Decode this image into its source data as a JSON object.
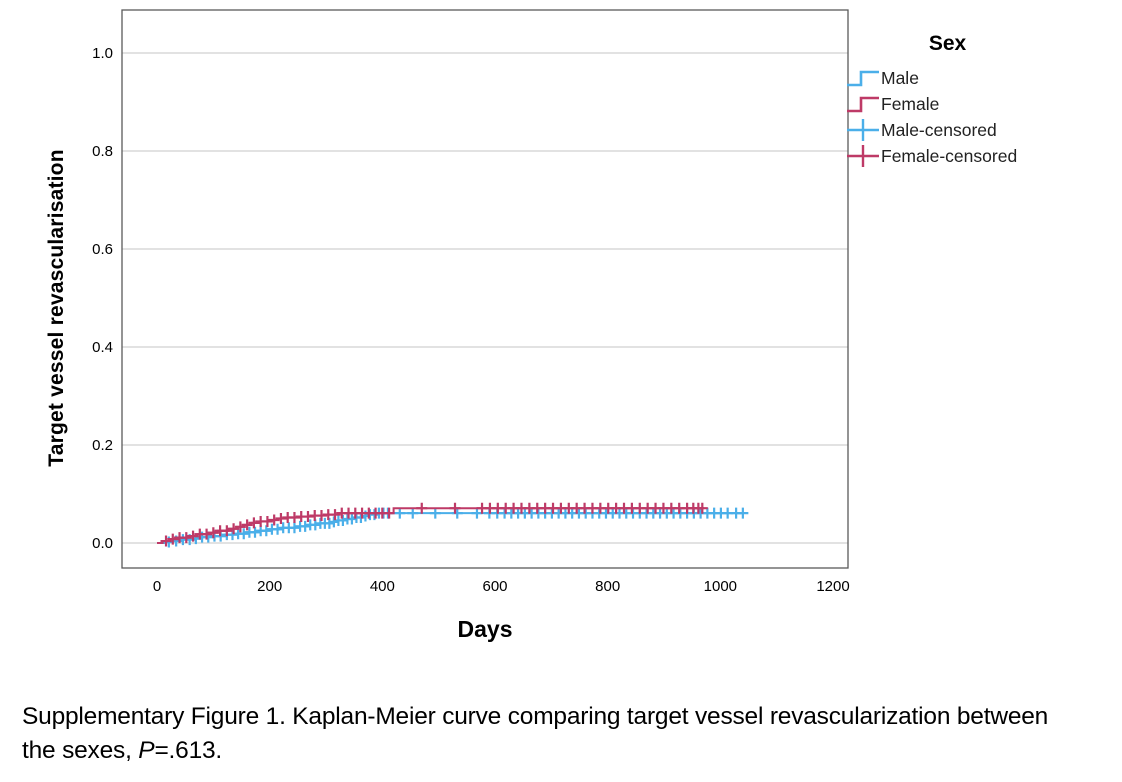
{
  "figure": {
    "y_axis_title": "Target vessel revascularisation",
    "x_axis_title": "Days",
    "legend": {
      "title": "Sex",
      "items": [
        {
          "label": "Male",
          "symbol": "step-line",
          "color_key": "male"
        },
        {
          "label": "Female",
          "symbol": "step-line",
          "color_key": "female"
        },
        {
          "label": "Male-censored",
          "symbol": "plus",
          "color_key": "male"
        },
        {
          "label": "Female-censored",
          "symbol": "plus",
          "color_key": "female"
        }
      ]
    }
  },
  "caption": {
    "text_before_p": "Supplementary Figure 1. Kaplan-Meier curve comparing target vessel revascularization between the sexes, ",
    "p_symbol": "P",
    "text_after_p": "=.613."
  },
  "colors": {
    "male": "#4BAFE9",
    "female": "#BE3A67",
    "gridline": "#D8D8D8",
    "frame": "#5A5A5A",
    "tick_text": "#000000"
  },
  "chart_data": {
    "type": "line",
    "subtype": "kaplan-meier-step",
    "title": "",
    "xlabel": "Days",
    "ylabel": "Target vessel revascularisation",
    "xlim": [
      -62,
      1227
    ],
    "ylim": [
      -0.05,
      1.09
    ],
    "x_ticks": [
      0,
      200,
      400,
      600,
      800,
      1000,
      1200
    ],
    "y_ticks": [
      0.0,
      0.2,
      0.4,
      0.6,
      0.8,
      1.0
    ],
    "y_tick_labels": [
      "0.0",
      "0.2",
      "0.4",
      "0.6",
      "0.8",
      "1.0"
    ],
    "grid": "horizontal",
    "legend_position": "outside-top-right",
    "p_value": 0.613,
    "series": [
      {
        "name": "Male",
        "color_key": "male",
        "end_day": 1040,
        "steps": [
          [
            0,
            0
          ],
          [
            14,
            0.002
          ],
          [
            28,
            0.004
          ],
          [
            45,
            0.007
          ],
          [
            62,
            0.009
          ],
          [
            80,
            0.012
          ],
          [
            100,
            0.014
          ],
          [
            120,
            0.017
          ],
          [
            140,
            0.019
          ],
          [
            160,
            0.022
          ],
          [
            180,
            0.025
          ],
          [
            200,
            0.028
          ],
          [
            222,
            0.031
          ],
          [
            245,
            0.034
          ],
          [
            268,
            0.037
          ],
          [
            290,
            0.04
          ],
          [
            308,
            0.043
          ],
          [
            322,
            0.046
          ],
          [
            336,
            0.049
          ],
          [
            350,
            0.052
          ],
          [
            363,
            0.055
          ],
          [
            377,
            0.058
          ],
          [
            392,
            0.061
          ]
        ],
        "censored_days": [
          21,
          34,
          46,
          58,
          69,
          80,
          91,
          102,
          113,
          124,
          134,
          144,
          154,
          164,
          174,
          184,
          194,
          204,
          214,
          224,
          234,
          244,
          254,
          263,
          272,
          281,
          290,
          298,
          306,
          314,
          322,
          330,
          338,
          346,
          354,
          362,
          370,
          378,
          386,
          394,
          402,
          410,
          431,
          454,
          494,
          533,
          568,
          590,
          604,
          617,
          629,
          641,
          653,
          665,
          677,
          689,
          701,
          713,
          725,
          737,
          749,
          761,
          773,
          785,
          797,
          809,
          821,
          833,
          845,
          857,
          869,
          881,
          893,
          905,
          917,
          929,
          941,
          953,
          965,
          977,
          989,
          1001,
          1013,
          1028,
          1040
        ]
      },
      {
        "name": "Female",
        "color_key": "female",
        "end_day": 968,
        "steps": [
          [
            0,
            0
          ],
          [
            10,
            0.004
          ],
          [
            22,
            0.008
          ],
          [
            38,
            0.011
          ],
          [
            55,
            0.014
          ],
          [
            72,
            0.018
          ],
          [
            90,
            0.021
          ],
          [
            108,
            0.025
          ],
          [
            126,
            0.029
          ],
          [
            142,
            0.033
          ],
          [
            155,
            0.037
          ],
          [
            168,
            0.041
          ],
          [
            182,
            0.044
          ],
          [
            198,
            0.047
          ],
          [
            214,
            0.05
          ],
          [
            232,
            0.052
          ],
          [
            255,
            0.054
          ],
          [
            278,
            0.056
          ],
          [
            300,
            0.058
          ],
          [
            320,
            0.061
          ],
          [
            420,
            0.071
          ]
        ],
        "censored_days": [
          16,
          28,
          40,
          52,
          64,
          76,
          88,
          100,
          112,
          124,
          136,
          148,
          160,
          172,
          184,
          196,
          208,
          220,
          232,
          244,
          256,
          268,
          280,
          292,
          304,
          316,
          328,
          340,
          352,
          364,
          376,
          388,
          400,
          412,
          470,
          529,
          577,
          591,
          605,
          619,
          633,
          647,
          661,
          675,
          689,
          703,
          717,
          731,
          745,
          759,
          773,
          787,
          801,
          815,
          829,
          843,
          857,
          871,
          885,
          899,
          913,
          927,
          941,
          952,
          961,
          968
        ]
      }
    ]
  }
}
